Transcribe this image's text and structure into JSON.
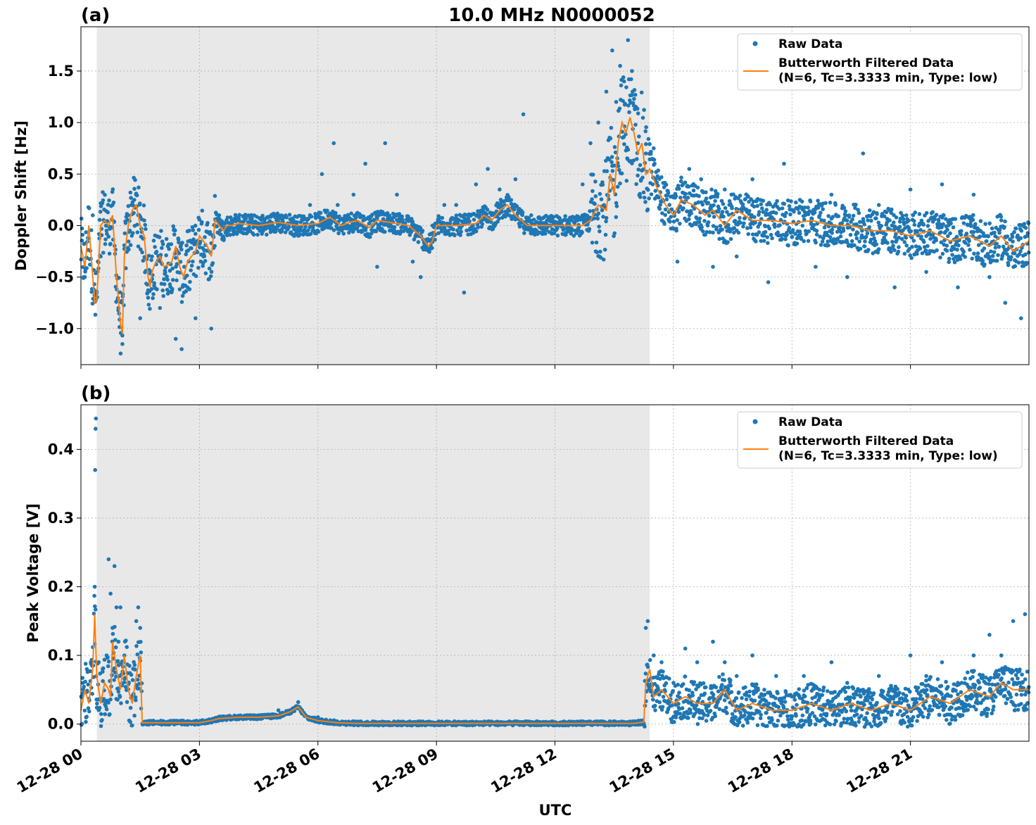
{
  "figure": {
    "title": "10.0 MHz N0000052",
    "xlabel": "UTC"
  },
  "colors": {
    "raw": "#1f77b4",
    "filtered": "#ff7f0e",
    "shade": "#e8e8e8",
    "grid": "#b0b0b0"
  },
  "legend": {
    "raw_label": "Raw Data",
    "filtered_label_line1": "Butterworth Filtered Data",
    "filtered_label_line2": "(N=6, Tc=3.3333 min, Type: low)",
    "placement": "upper right"
  },
  "chart_data": [
    {
      "type": "scatter",
      "panel_label": "(a)",
      "ylabel": "Doppler Shift [Hz]",
      "xlim_hours": [
        0,
        24
      ],
      "ylim": [
        -1.35,
        1.93
      ],
      "yticks": [
        -1.0,
        -0.5,
        0.0,
        0.5,
        1.0,
        1.5
      ],
      "ytick_labels": [
        "−1.0",
        "−0.5",
        "0.0",
        "0.5",
        "1.0",
        "1.5"
      ],
      "shaded_span_hours": [
        0.4,
        14.4
      ],
      "grid": true,
      "legend_placement": "upper right",
      "series": [
        {
          "name": "Butterworth Filtered Data\n(N=6, Tc=3.3333 min, Type: low)",
          "x_hours": [
            0,
            0.1,
            0.2,
            0.3,
            0.35,
            0.4,
            0.5,
            0.6,
            0.7,
            0.8,
            0.9,
            1.0,
            1.05,
            1.1,
            1.2,
            1.3,
            1.4,
            1.5,
            1.6,
            1.7,
            1.75,
            1.8,
            1.9,
            2.0,
            2.1,
            2.2,
            2.3,
            2.4,
            2.5,
            2.6,
            2.7,
            2.8,
            2.9,
            3.0,
            3.1,
            3.2,
            3.3,
            3.4,
            3.5,
            3.6,
            3.7,
            3.8,
            4.0,
            4.5,
            5.0,
            5.5,
            6.0,
            6.3,
            6.6,
            6.8,
            7.0,
            7.3,
            7.5,
            8.0,
            8.3,
            8.6,
            8.8,
            8.9,
            9.0,
            9.2,
            9.5,
            10.0,
            10.2,
            10.4,
            10.6,
            10.8,
            11.0,
            11.3,
            11.6,
            12.0,
            12.4,
            12.7,
            12.9,
            13.1,
            13.3,
            13.4,
            13.5,
            13.6,
            13.7,
            13.8,
            13.9,
            14.0,
            14.1,
            14.2,
            14.3,
            14.4,
            14.6,
            14.8,
            15.0,
            15.2,
            15.5,
            15.8,
            16.0,
            16.3,
            16.6,
            17.0,
            17.5,
            18.0,
            18.5,
            19.0,
            19.5,
            20.0,
            20.5,
            21.0,
            21.5,
            22.0,
            22.5,
            23.0,
            23.3,
            23.6,
            23.8,
            24.0
          ],
          "y": [
            -0.2,
            -0.4,
            0.0,
            -0.5,
            -0.75,
            -0.72,
            0.0,
            0.05,
            0.0,
            0.1,
            -0.5,
            -0.95,
            -1.05,
            -0.3,
            0.0,
            0.15,
            0.2,
            0.0,
            -0.1,
            -0.5,
            -0.6,
            -0.45,
            -0.35,
            -0.3,
            -0.4,
            -0.38,
            -0.35,
            -0.2,
            -0.4,
            -0.5,
            -0.35,
            -0.3,
            -0.25,
            -0.1,
            -0.15,
            -0.2,
            -0.3,
            0.05,
            0.0,
            -0.05,
            0.0,
            0.0,
            0.02,
            0.0,
            0.03,
            0.0,
            0.02,
            0.08,
            0.0,
            0.03,
            0.05,
            -0.02,
            0.05,
            0.02,
            0.0,
            -0.1,
            -0.2,
            -0.15,
            0.0,
            0.0,
            0.0,
            0.02,
            0.1,
            0.05,
            0.15,
            0.2,
            0.1,
            0.0,
            0.0,
            0.0,
            0.0,
            0.0,
            0.05,
            0.2,
            0.15,
            0.5,
            0.3,
            0.8,
            1.0,
            0.9,
            1.05,
            0.9,
            0.7,
            0.8,
            0.5,
            0.55,
            0.35,
            0.2,
            0.1,
            0.25,
            0.2,
            0.1,
            0.15,
            0.0,
            0.15,
            0.05,
            0.05,
            0.02,
            0.05,
            0.0,
            0.0,
            -0.05,
            -0.05,
            -0.1,
            -0.05,
            -0.15,
            -0.1,
            -0.2,
            -0.1,
            -0.25,
            -0.2,
            -0.15
          ]
        },
        {
          "name": "Raw Data",
          "x_hours": [
            0.1,
            0.3,
            0.5,
            0.8,
            0.95,
            1.05,
            1.2,
            1.35,
            1.5,
            1.7,
            1.8,
            2.0,
            2.2,
            2.4,
            2.55,
            2.7,
            2.9,
            3.1,
            3.3,
            3.5,
            4.0,
            4.5,
            5.0,
            5.4,
            5.8,
            6.1,
            6.4,
            6.5,
            6.9,
            7.2,
            7.5,
            7.7,
            8.0,
            8.4,
            8.6,
            8.9,
            9.2,
            9.5,
            9.7,
            10.0,
            10.3,
            10.6,
            11.0,
            11.2,
            11.4,
            11.8,
            12.3,
            12.7,
            12.9,
            13.1,
            13.3,
            13.45,
            13.55,
            13.65,
            13.75,
            13.85,
            13.95,
            14.1,
            14.3,
            14.5,
            14.8,
            15.1,
            15.4,
            15.7,
            16.0,
            16.3,
            16.6,
            17.0,
            17.4,
            17.8,
            18.2,
            18.6,
            19.0,
            19.4,
            19.8,
            20.2,
            20.6,
            21.0,
            21.4,
            21.8,
            22.2,
            22.6,
            23.0,
            23.4,
            23.8
          ],
          "y": [
            -0.5,
            0.1,
            -0.3,
            0.2,
            -0.8,
            -1.15,
            0.1,
            0.25,
            -0.9,
            -0.7,
            -0.3,
            -0.8,
            -0.2,
            -1.1,
            -1.2,
            -0.6,
            -0.9,
            -0.3,
            -1.0,
            0.1,
            0.05,
            0.0,
            0.1,
            -0.1,
            0.2,
            0.5,
            0.8,
            0.2,
            0.3,
            0.6,
            -0.4,
            0.8,
            0.3,
            -0.35,
            -0.5,
            0.0,
            0.2,
            0.2,
            -0.65,
            0.4,
            0.55,
            0.35,
            0.45,
            1.08,
            0.1,
            0.05,
            0.0,
            0.4,
            0.8,
            1.0,
            1.3,
            1.7,
            1.2,
            1.55,
            1.4,
            1.8,
            1.5,
            0.8,
            0.7,
            0.75,
            0.4,
            -0.35,
            0.55,
            0.45,
            -0.4,
            0.35,
            -0.3,
            0.45,
            -0.55,
            0.6,
            0.25,
            -0.4,
            0.3,
            -0.5,
            0.7,
            0.2,
            -0.6,
            0.35,
            -0.45,
            0.4,
            -0.6,
            0.3,
            -0.5,
            -0.75,
            -0.9
          ]
        }
      ]
    },
    {
      "type": "scatter",
      "panel_label": "(b)",
      "ylabel": "Peak Voltage [V]",
      "xlabel": "UTC",
      "xlim_hours": [
        0,
        24
      ],
      "ylim": [
        -0.025,
        0.465
      ],
      "yticks": [
        0.0,
        0.1,
        0.2,
        0.3,
        0.4
      ],
      "ytick_labels": [
        "0.0",
        "0.1",
        "0.2",
        "0.3",
        "0.4"
      ],
      "xticks_hours": [
        0,
        3,
        6,
        9,
        12,
        15,
        18,
        21
      ],
      "xtick_labels": [
        "12-28 00",
        "12-28 03",
        "12-28 06",
        "12-28 09",
        "12-28 12",
        "12-28 15",
        "12-28 18",
        "12-28 21"
      ],
      "shaded_span_hours": [
        0.4,
        14.4
      ],
      "grid": true,
      "legend_placement": "upper right",
      "series": [
        {
          "name": "Butterworth Filtered Data\n(N=6, Tc=3.3333 min, Type: low)",
          "x_hours": [
            0,
            0.1,
            0.2,
            0.3,
            0.35,
            0.4,
            0.45,
            0.5,
            0.6,
            0.7,
            0.75,
            0.8,
            0.9,
            1.0,
            1.1,
            1.2,
            1.3,
            1.4,
            1.5,
            1.55,
            1.6,
            2.0,
            2.5,
            3.0,
            3.3,
            3.5,
            4.0,
            4.5,
            5.0,
            5.3,
            5.5,
            5.7,
            6.0,
            6.5,
            7.0,
            8.0,
            9.0,
            10.0,
            11.0,
            12.0,
            13.0,
            14.0,
            14.25,
            14.3,
            14.4,
            14.5,
            14.7,
            15.0,
            15.3,
            15.6,
            16.0,
            16.3,
            16.6,
            17.0,
            17.5,
            18.0,
            18.5,
            19.0,
            19.5,
            20.0,
            20.5,
            21.0,
            21.5,
            22.0,
            22.5,
            23.0,
            23.3,
            23.6,
            24.0
          ],
          "y": [
            0.02,
            0.05,
            0.03,
            0.08,
            0.16,
            0.07,
            0.05,
            0.03,
            0.06,
            0.05,
            0.04,
            0.12,
            0.08,
            0.05,
            0.1,
            0.05,
            0.03,
            0.07,
            0.1,
            0.002,
            0.002,
            0.002,
            0.002,
            0.002,
            0.005,
            0.008,
            0.01,
            0.01,
            0.012,
            0.018,
            0.025,
            0.01,
            0.005,
            0.002,
            0.001,
            0.001,
            0.001,
            0.001,
            0.001,
            0.001,
            0.001,
            0.001,
            0.003,
            0.06,
            0.08,
            0.04,
            0.05,
            0.03,
            0.04,
            0.03,
            0.03,
            0.05,
            0.02,
            0.03,
            0.02,
            0.02,
            0.03,
            0.02,
            0.03,
            0.02,
            0.03,
            0.02,
            0.04,
            0.03,
            0.05,
            0.04,
            0.06,
            0.05,
            0.05
          ]
        },
        {
          "name": "Raw Data",
          "x_hours": [
            0.05,
            0.15,
            0.25,
            0.35,
            0.36,
            0.37,
            0.38,
            0.45,
            0.55,
            0.65,
            0.7,
            0.75,
            0.8,
            0.85,
            0.9,
            0.95,
            1.0,
            1.1,
            1.2,
            1.3,
            1.4,
            1.45,
            1.5,
            1.6,
            2.0,
            3.0,
            4.0,
            5.0,
            5.5,
            6.0,
            7.0,
            8.0,
            9.0,
            10.0,
            11.0,
            12.0,
            13.0,
            14.0,
            14.2,
            14.3,
            14.35,
            14.5,
            14.7,
            15.0,
            15.3,
            15.6,
            16.0,
            16.3,
            16.6,
            17.0,
            17.3,
            17.6,
            18.0,
            18.3,
            18.7,
            19.0,
            19.4,
            19.8,
            20.2,
            20.6,
            21.0,
            21.4,
            21.8,
            22.2,
            22.6,
            23.0,
            23.3,
            23.6,
            23.9
          ],
          "y": [
            0.06,
            0.08,
            0.09,
            0.2,
            0.37,
            0.43,
            0.445,
            0.09,
            0.08,
            0.1,
            0.24,
            0.19,
            0.14,
            0.23,
            0.17,
            0.12,
            0.17,
            0.1,
            0.06,
            0.04,
            0.15,
            0.17,
            0.14,
            0.003,
            0.003,
            0.003,
            0.01,
            0.02,
            0.032,
            0.01,
            0.003,
            0.002,
            0.002,
            0.003,
            0.002,
            0.002,
            0.002,
            0.002,
            0.005,
            0.14,
            0.15,
            0.1,
            0.09,
            0.06,
            0.11,
            0.09,
            0.12,
            0.09,
            0.07,
            0.1,
            0.05,
            0.07,
            0.04,
            0.07,
            0.05,
            0.09,
            0.06,
            0.05,
            0.07,
            0.05,
            0.1,
            0.07,
            0.09,
            0.06,
            0.1,
            0.13,
            0.1,
            0.15,
            0.16
          ]
        }
      ]
    }
  ]
}
